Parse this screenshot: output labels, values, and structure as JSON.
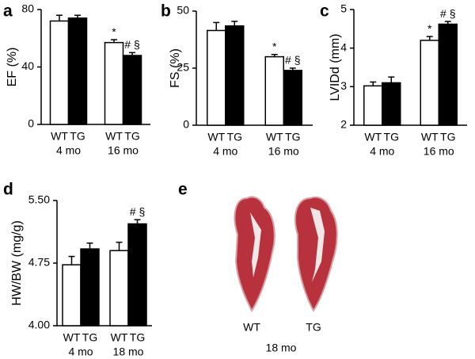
{
  "chart_data": [
    {
      "type": "bar",
      "panel": "a",
      "ylabel": "EF (%)",
      "categories": [
        "4 mo",
        "16 mo"
      ],
      "series": [
        {
          "name": "WT",
          "color": "#ffffff",
          "values": [
            72,
            57
          ],
          "errors": [
            4,
            2
          ],
          "significance": [
            null,
            "*"
          ]
        },
        {
          "name": "TG",
          "color": "#000000",
          "values": [
            74,
            48
          ],
          "errors": [
            2,
            2
          ],
          "significance": [
            null,
            "# §"
          ]
        }
      ],
      "ylim": [
        0,
        80
      ],
      "yticks": [
        0,
        40,
        80
      ]
    },
    {
      "type": "bar",
      "panel": "b",
      "ylabel": "FS (%)",
      "categories": [
        "4 mo",
        "16 mo"
      ],
      "series": [
        {
          "name": "WT",
          "color": "#ffffff",
          "values": [
            41.5,
            30
          ],
          "errors": [
            3.5,
            1
          ],
          "significance": [
            null,
            "*"
          ]
        },
        {
          "name": "TG",
          "color": "#000000",
          "values": [
            43.5,
            24
          ],
          "errors": [
            2,
            1
          ],
          "significance": [
            null,
            "# §"
          ]
        }
      ],
      "ylim": [
        0,
        50
      ],
      "yticks": [
        0,
        25,
        50
      ]
    },
    {
      "type": "bar",
      "panel": "c",
      "ylabel": "LVIDd (mm)",
      "categories": [
        "4 mo",
        "16 mo"
      ],
      "series": [
        {
          "name": "WT",
          "color": "#ffffff",
          "values": [
            3.02,
            4.2
          ],
          "errors": [
            0.1,
            0.1
          ],
          "significance": [
            null,
            "*"
          ]
        },
        {
          "name": "TG",
          "color": "#000000",
          "values": [
            3.1,
            4.62
          ],
          "errors": [
            0.15,
            0.07
          ],
          "significance": [
            null,
            "# §"
          ]
        }
      ],
      "ylim": [
        2,
        5
      ],
      "yticks": [
        2,
        3,
        4,
        5
      ]
    },
    {
      "type": "bar",
      "panel": "d",
      "ylabel": "HW/BW (mg/g)",
      "categories": [
        "4 mo",
        "18 mo"
      ],
      "series": [
        {
          "name": "WT",
          "color": "#ffffff",
          "values": [
            4.73,
            4.9
          ],
          "errors": [
            0.1,
            0.1
          ],
          "significance": [
            null,
            null
          ]
        },
        {
          "name": "TG",
          "color": "#000000",
          "values": [
            4.92,
            5.22
          ],
          "errors": [
            0.07,
            0.05
          ],
          "significance": [
            null,
            "# §"
          ]
        }
      ],
      "ylim": [
        4,
        5.5
      ],
      "yticks": [
        {
          "value": 4,
          "label": "4.00"
        },
        {
          "value": 4.75,
          "label": "4.75"
        },
        {
          "value": 5.5,
          "label": "5.50"
        }
      ]
    }
  ],
  "image_panel": {
    "panel": "e",
    "labels": [
      "WT",
      "TG"
    ],
    "caption": "18 mo"
  }
}
